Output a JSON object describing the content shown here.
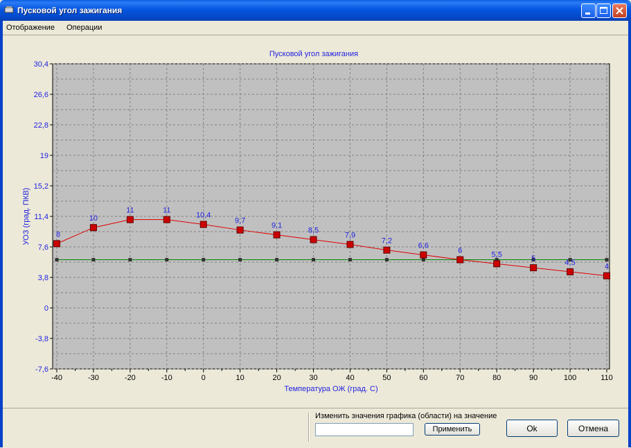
{
  "window": {
    "title": "Пусковой угол зажигания"
  },
  "menu": {
    "items": [
      "Отображение",
      "Операции"
    ]
  },
  "chart_data": {
    "type": "line",
    "title": "Пусковой угол зажигания",
    "xlabel": "Температура ОЖ (град. С)",
    "ylabel": "УОЗ (град. ПКВ)",
    "xlim": [
      -40,
      110
    ],
    "ylim": [
      -7.6,
      30.4
    ],
    "x_ticks": [
      -40,
      -30,
      -20,
      -10,
      0,
      10,
      20,
      30,
      40,
      50,
      60,
      70,
      80,
      90,
      100,
      110
    ],
    "y_ticks": [
      "30,4",
      "26,6",
      "22,8",
      "19",
      "15,2",
      "11,4",
      "7,6",
      "3,8",
      "0",
      "-3,8",
      "-7,6"
    ],
    "grid": true,
    "series": [
      {
        "color": "#e00000",
        "marker_color": "#cc0000",
        "label_color": "#1f1fe0",
        "x": [
          -40,
          -30,
          -20,
          -10,
          0,
          10,
          20,
          30,
          40,
          50,
          60,
          70,
          80,
          90,
          100,
          110
        ],
        "values": [
          8,
          10,
          11,
          11,
          10.4,
          9.7,
          9.1,
          8.5,
          7.9,
          7.2,
          6.6,
          6,
          5.5,
          5,
          4.5,
          4
        ],
        "labels": [
          "8",
          "10",
          "11",
          "11",
          "10,4",
          "9,7",
          "9,1",
          "8,5",
          "7,9",
          "7,2",
          "6,6",
          "6",
          "5,5",
          "5",
          "4,5",
          "4"
        ]
      },
      {
        "color": "#008000",
        "marker_color": "#333333",
        "x": [
          -40,
          -30,
          -20,
          -10,
          0,
          10,
          20,
          30,
          40,
          50,
          60,
          70,
          80,
          90,
          100,
          110
        ],
        "values": [
          6,
          6,
          6,
          6,
          6,
          6,
          6,
          6,
          6,
          6,
          6,
          6,
          6,
          6,
          6,
          6
        ]
      }
    ],
    "colors": {
      "title": "#1f1fe0",
      "axis_text": "#1f1fe0",
      "plot_bg": "#c0c0c0",
      "grid": "#808080"
    }
  },
  "bottom": {
    "change_label": "Изменить значения графика (области) на значение",
    "input_value": "",
    "apply_label": "Применить",
    "ok_label": "Ok",
    "cancel_label": "Отмена"
  }
}
